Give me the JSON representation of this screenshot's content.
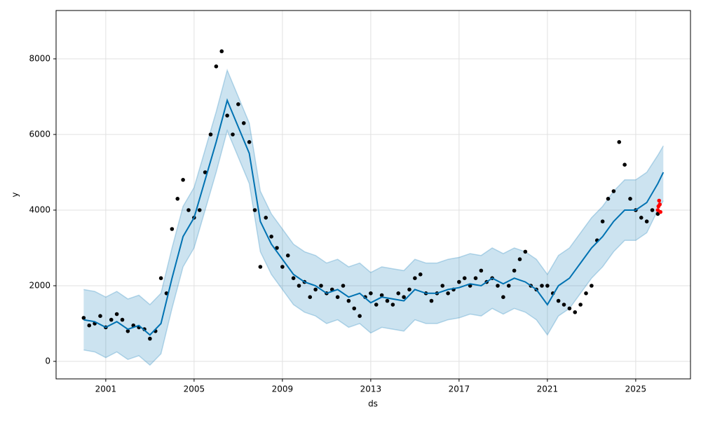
{
  "chart_data": {
    "type": "forecast",
    "xlabel": "ds",
    "ylabel": "y",
    "xlim": [
      1998.75,
      2027.48
    ],
    "ylim": [
      -463,
      9278
    ],
    "xticks": [
      2001,
      2005,
      2009,
      2013,
      2017,
      2021,
      2025
    ],
    "yticks": [
      0,
      2000,
      4000,
      6000,
      8000
    ],
    "grid": true,
    "observed": {
      "color": "#000000",
      "x": [
        2000,
        2000.25,
        2000.5,
        2000.75,
        2001,
        2001.25,
        2001.5,
        2001.75,
        2002,
        2002.25,
        2002.5,
        2002.75,
        2003,
        2003.25,
        2003.5,
        2003.75,
        2004,
        2004.25,
        2004.5,
        2004.75,
        2005,
        2005.25,
        2005.5,
        2005.75,
        2006,
        2006.25,
        2006.5,
        2006.75,
        2007,
        2007.25,
        2007.5,
        2007.75,
        2008,
        2008.25,
        2008.5,
        2008.75,
        2009,
        2009.25,
        2009.5,
        2009.75,
        2010,
        2010.25,
        2010.5,
        2010.75,
        2011,
        2011.25,
        2011.5,
        2011.75,
        2012,
        2012.25,
        2012.5,
        2012.75,
        2013,
        2013.25,
        2013.5,
        2013.75,
        2014,
        2014.25,
        2014.5,
        2014.75,
        2015,
        2015.25,
        2015.5,
        2015.75,
        2016,
        2016.25,
        2016.5,
        2016.75,
        2017,
        2017.25,
        2017.5,
        2017.75,
        2018,
        2018.25,
        2018.5,
        2018.75,
        2019,
        2019.25,
        2019.5,
        2019.75,
        2020,
        2020.25,
        2020.5,
        2020.75,
        2021,
        2021.25,
        2021.5,
        2021.75,
        2022,
        2022.25,
        2022.5,
        2022.75,
        2023,
        2023.25,
        2023.5,
        2023.75,
        2024,
        2024.25,
        2024.5,
        2024.75,
        2025,
        2025.25,
        2025.5,
        2025.75,
        2026
      ],
      "values": [
        1150,
        950,
        1000,
        1200,
        900,
        1100,
        1250,
        1100,
        800,
        950,
        900,
        850,
        600,
        800,
        2200,
        1800,
        3500,
        4300,
        4800,
        4000,
        3800,
        4000,
        5000,
        6000,
        7800,
        8200,
        6500,
        6000,
        6800,
        6300,
        5800,
        4000,
        2500,
        3800,
        3300,
        3000,
        2500,
        2800,
        2200,
        2000,
        2100,
        1700,
        1900,
        2000,
        1800,
        1900,
        1700,
        2000,
        1600,
        1400,
        1200,
        1700,
        1800,
        1500,
        1750,
        1600,
        1500,
        1800,
        1700,
        1900,
        2200,
        2300,
        1800,
        1600,
        1800,
        2000,
        1800,
        1900,
        2100,
        2200,
        2000,
        2200,
        2400,
        2100,
        2200,
        2000,
        1700,
        2000,
        2400,
        2700,
        2900,
        2000,
        1900,
        2000,
        2000,
        1800,
        1600,
        1500,
        1400,
        1300,
        1500,
        1800,
        2000,
        3200,
        3700,
        4300,
        4500,
        5800,
        5200,
        4300,
        4000,
        3800,
        3700,
        4000,
        3900
      ]
    },
    "forecast": {
      "color": "#0072B2",
      "band_color": "#0072B2",
      "x": [
        2000,
        2000.5,
        2001,
        2001.5,
        2002,
        2002.5,
        2003,
        2003.5,
        2004,
        2004.5,
        2005,
        2005.5,
        2006,
        2006.5,
        2007,
        2007.5,
        2008,
        2008.5,
        2009,
        2009.5,
        2010,
        2010.5,
        2011,
        2011.5,
        2012,
        2012.5,
        2013,
        2013.5,
        2014,
        2014.5,
        2015,
        2015.5,
        2016,
        2016.5,
        2017,
        2017.5,
        2018,
        2018.5,
        2019,
        2019.5,
        2020,
        2020.5,
        2021,
        2021.5,
        2022,
        2022.5,
        2023,
        2023.5,
        2024,
        2024.5,
        2025,
        2025.5,
        2026,
        2026.25
      ],
      "values": [
        1100,
        1050,
        900,
        1050,
        850,
        950,
        700,
        1000,
        2200,
        3300,
        3800,
        4800,
        5800,
        6900,
        6200,
        5500,
        3700,
        3100,
        2700,
        2300,
        2100,
        2000,
        1800,
        1900,
        1700,
        1800,
        1550,
        1700,
        1650,
        1600,
        1900,
        1800,
        1800,
        1900,
        1950,
        2050,
        2000,
        2200,
        2050,
        2200,
        2100,
        1900,
        1500,
        2000,
        2200,
        2600,
        3000,
        3300,
        3700,
        4000,
        4000,
        4200,
        4700,
        5000
      ],
      "lower": [
        300,
        250,
        100,
        250,
        50,
        150,
        -100,
        200,
        1400,
        2500,
        3000,
        4000,
        5000,
        6100,
        5400,
        4700,
        2900,
        2300,
        1900,
        1500,
        1300,
        1200,
        1000,
        1100,
        900,
        1000,
        750,
        900,
        850,
        800,
        1100,
        1000,
        1000,
        1100,
        1150,
        1250,
        1200,
        1400,
        1250,
        1400,
        1300,
        1100,
        700,
        1200,
        1400,
        1800,
        2200,
        2500,
        2900,
        3200,
        3200,
        3400,
        4000,
        4250
      ],
      "upper": [
        1900,
        1850,
        1700,
        1850,
        1650,
        1750,
        1500,
        1800,
        3000,
        4100,
        4600,
        5600,
        6600,
        7700,
        7000,
        6300,
        4500,
        3900,
        3500,
        3100,
        2900,
        2800,
        2600,
        2700,
        2500,
        2600,
        2350,
        2500,
        2450,
        2400,
        2700,
        2600,
        2600,
        2700,
        2750,
        2850,
        2800,
        3000,
        2850,
        3000,
        2900,
        2700,
        2300,
        2800,
        3000,
        3400,
        3800,
        4100,
        4500,
        4800,
        4800,
        5000,
        5450,
        5700
      ]
    },
    "test": {
      "color": "#ff0000",
      "x": [
        2026.0,
        2026.03,
        2026.06,
        2026.09,
        2026.12
      ],
      "values": [
        4000,
        4100,
        4250,
        4150,
        3950
      ]
    }
  }
}
